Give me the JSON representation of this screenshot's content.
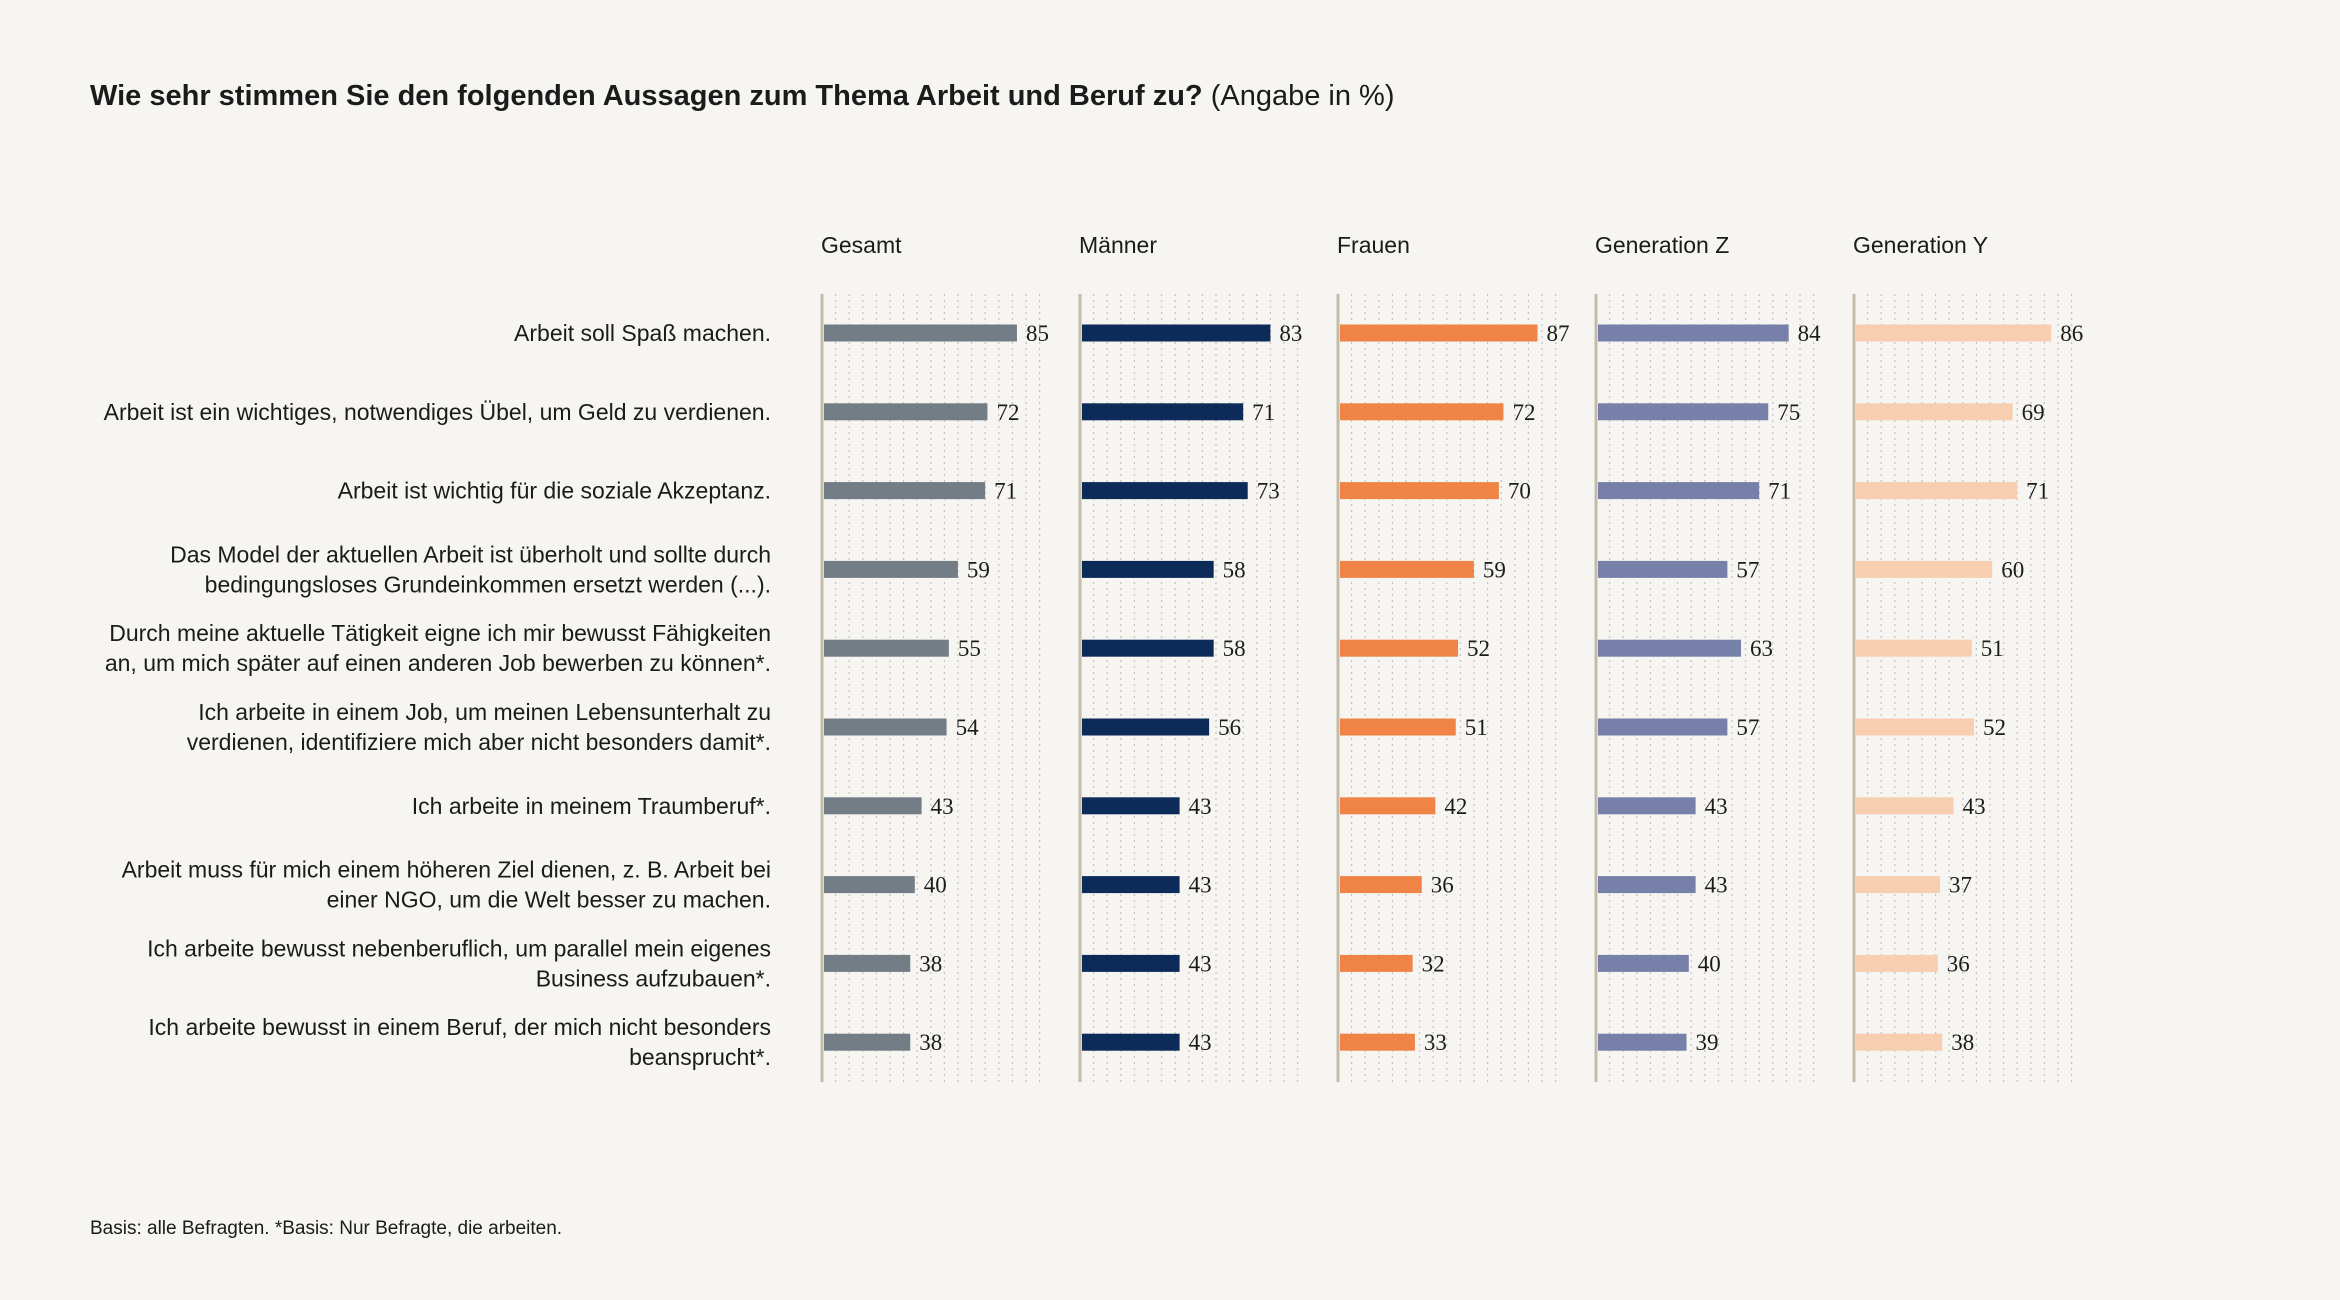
{
  "title": {
    "question": "Wie sehr stimmen Sie den folgenden Aussagen zum Thema Arbeit und Beruf zu?",
    "unit_note": "(Angabe in %)"
  },
  "footnote": "Basis: alle Befragten. *Basis: Nur Befragte, die arbeiten.",
  "chart_data": {
    "type": "bar",
    "orientation": "horizontal",
    "layout": "small-multiples",
    "title": "Wie sehr stimmen Sie den folgenden Aussagen zum Thema Arbeit und Beruf zu?",
    "unit": "%",
    "xlim": [
      0,
      100
    ],
    "grid": true,
    "categories": [
      [
        "Arbeit soll Spaß machen."
      ],
      [
        "Arbeit ist ein wichtiges, notwendiges Übel, um Geld zu verdienen."
      ],
      [
        "Arbeit ist wichtig für die soziale Akzeptanz."
      ],
      [
        "Das Model der aktuellen Arbeit ist überholt und sollte durch",
        "bedingungsloses Grundeinkommen ersetzt werden (...)."
      ],
      [
        "Durch meine aktuelle Tätigkeit eigne ich mir bewusst Fähigkeiten",
        "an, um mich später auf einen anderen Job bewerben zu können*."
      ],
      [
        "Ich arbeite in einem Job, um meinen Lebensunterhalt zu",
        "verdienen, identifiziere mich aber nicht besonders damit*."
      ],
      [
        "Ich arbeite in meinem Traumberuf*."
      ],
      [
        "Arbeit muss für mich einem höheren Ziel dienen, z. B. Arbeit bei",
        "einer NGO, um die Welt besser zu machen."
      ],
      [
        "Ich arbeite bewusst nebenberuflich, um parallel mein eigenes",
        "Business aufzubauen*."
      ],
      [
        "Ich arbeite bewusst in einem Beruf, der mich nicht besonders",
        "beansprucht*."
      ]
    ],
    "series": [
      {
        "name": "Gesamt",
        "color": "#737d86",
        "values": [
          85,
          72,
          71,
          59,
          55,
          54,
          43,
          40,
          38,
          38
        ]
      },
      {
        "name": "Männer",
        "color": "#0d2b58",
        "values": [
          83,
          71,
          73,
          58,
          58,
          56,
          43,
          43,
          43,
          43
        ]
      },
      {
        "name": "Frauen",
        "color": "#ef8446",
        "values": [
          87,
          72,
          70,
          59,
          52,
          51,
          42,
          36,
          32,
          33
        ]
      },
      {
        "name": "Generation Z",
        "color": "#7780a8",
        "values": [
          84,
          75,
          71,
          57,
          63,
          57,
          43,
          43,
          40,
          39
        ]
      },
      {
        "name": "Generation Y",
        "color": "#f8ceb0",
        "values": [
          86,
          69,
          71,
          60,
          51,
          52,
          43,
          37,
          36,
          38
        ]
      }
    ]
  }
}
